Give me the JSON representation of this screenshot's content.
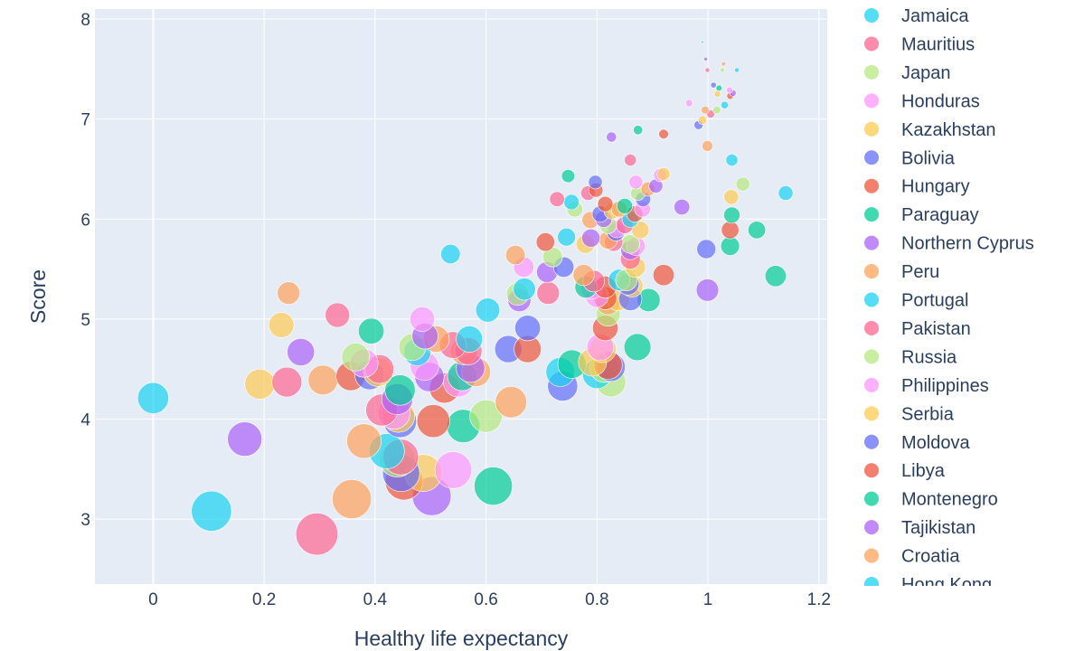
{
  "chart_data": {
    "type": "scatter",
    "xlabel": "Healthy life expectancy",
    "ylabel": "Score",
    "xlim": [
      -0.105,
      1.215
    ],
    "ylim": [
      2.35,
      8.1
    ],
    "x_ticks": [
      0,
      0.2,
      0.4,
      0.6,
      0.8,
      1,
      1.2
    ],
    "x_tick_labels": [
      "0",
      "0.2",
      "0.4",
      "0.6",
      "0.8",
      "1",
      "1.2"
    ],
    "y_ticks": [
      3,
      4,
      5,
      6,
      7,
      8
    ],
    "y_tick_labels": [
      "3",
      "4",
      "5",
      "6",
      "7",
      "8"
    ],
    "grid": true,
    "legend_position": "right",
    "palette": [
      "#00cc96",
      "#ab63fa",
      "#ffa15a",
      "#19d3f3",
      "#ff6692",
      "#b6e880",
      "#ff97ff",
      "#fecb52",
      "#636efa",
      "#ef553b"
    ],
    "legend": [
      {
        "name": "Jamaica",
        "color": "#19d3f3"
      },
      {
        "name": "Mauritius",
        "color": "#ff6692"
      },
      {
        "name": "Japan",
        "color": "#b6e880"
      },
      {
        "name": "Honduras",
        "color": "#ff97ff"
      },
      {
        "name": "Kazakhstan",
        "color": "#fecb52"
      },
      {
        "name": "Bolivia",
        "color": "#636efa"
      },
      {
        "name": "Hungary",
        "color": "#ef553b"
      },
      {
        "name": "Paraguay",
        "color": "#00cc96"
      },
      {
        "name": "Northern Cyprus",
        "color": "#ab63fa"
      },
      {
        "name": "Peru",
        "color": "#ffa15a"
      },
      {
        "name": "Portugal",
        "color": "#19d3f3"
      },
      {
        "name": "Pakistan",
        "color": "#ff6692"
      },
      {
        "name": "Russia",
        "color": "#b6e880"
      },
      {
        "name": "Philippines",
        "color": "#ff97ff"
      },
      {
        "name": "Serbia",
        "color": "#fecb52"
      },
      {
        "name": "Moldova",
        "color": "#636efa"
      },
      {
        "name": "Libya",
        "color": "#ef553b"
      },
      {
        "name": "Montenegro",
        "color": "#00cc96"
      },
      {
        "name": "Tajikistan",
        "color": "#ab63fa"
      },
      {
        "name": "Croatia",
        "color": "#ffa15a"
      },
      {
        "name": "Hong Kong",
        "color": "#19d3f3"
      }
    ],
    "points": [
      [
        0.99,
        7.77
      ],
      [
        0.996,
        7.6
      ],
      [
        1.028,
        7.55
      ],
      [
        1.052,
        7.49
      ],
      [
        0.999,
        7.49
      ],
      [
        1.026,
        7.49
      ],
      [
        1.039,
        7.29
      ],
      [
        1.017,
        7.25
      ],
      [
        1.01,
        7.34
      ],
      [
        1.04,
        7.23
      ],
      [
        1.02,
        7.31
      ],
      [
        1.045,
        7.26
      ],
      [
        0.995,
        7.09
      ],
      [
        1.03,
        7.14
      ],
      [
        1.005,
        7.05
      ],
      [
        1.016,
        7.09
      ],
      [
        0.966,
        7.16
      ],
      [
        0.99,
        6.99
      ],
      [
        0.983,
        6.94
      ],
      [
        0.92,
        6.85
      ],
      [
        0.874,
        6.89
      ],
      [
        0.826,
        6.82
      ],
      [
        0.999,
        6.73
      ],
      [
        1.043,
        6.59
      ],
      [
        0.86,
        6.59
      ],
      [
        1.063,
        6.35
      ],
      [
        0.914,
        6.44
      ],
      [
        0.92,
        6.45
      ],
      [
        0.797,
        6.37
      ],
      [
        0.798,
        6.29
      ],
      [
        0.748,
        6.43
      ],
      [
        0.906,
        6.33
      ],
      [
        0.892,
        6.3
      ],
      [
        1.14,
        6.26
      ],
      [
        0.784,
        6.26
      ],
      [
        0.874,
        6.26
      ],
      [
        0.87,
        6.37
      ],
      [
        1.042,
        6.22
      ],
      [
        0.883,
        6.2
      ],
      [
        0.815,
        6.15
      ],
      [
        0.85,
        6.13
      ],
      [
        0.953,
        6.12
      ],
      [
        0.84,
        6.1
      ],
      [
        0.754,
        6.17
      ],
      [
        0.728,
        6.2
      ],
      [
        0.76,
        6.1
      ],
      [
        0.882,
        6.1
      ],
      [
        0.827,
        6.08
      ],
      [
        0.806,
        6.05
      ],
      [
        0.868,
        6.05
      ],
      [
        1.043,
        6.04
      ],
      [
        0.812,
        6.0
      ],
      [
        0.788,
        5.99
      ],
      [
        0.86,
        6.0
      ],
      [
        0.85,
        5.94
      ],
      [
        0.82,
        5.94
      ],
      [
        0.836,
        5.9
      ],
      [
        0.878,
        5.89
      ],
      [
        0.834,
        5.87
      ],
      [
        1.04,
        5.89
      ],
      [
        1.088,
        5.89
      ],
      [
        0.789,
        5.81
      ],
      [
        0.82,
        5.79
      ],
      [
        0.745,
        5.82
      ],
      [
        0.83,
        5.77
      ],
      [
        0.86,
        5.75
      ],
      [
        0.87,
        5.73
      ],
      [
        0.779,
        5.75
      ],
      [
        0.997,
        5.7
      ],
      [
        0.707,
        5.77
      ],
      [
        1.04,
        5.73
      ],
      [
        0.86,
        5.69
      ],
      [
        0.653,
        5.64
      ],
      [
        0.536,
        5.65
      ],
      [
        0.86,
        5.6
      ],
      [
        0.72,
        5.62
      ],
      [
        0.668,
        5.52
      ],
      [
        0.869,
        5.52
      ],
      [
        0.74,
        5.52
      ],
      [
        0.92,
        5.44
      ],
      [
        1.122,
        5.43
      ],
      [
        0.71,
        5.47
      ],
      [
        0.776,
        5.44
      ],
      [
        0.84,
        5.39
      ],
      [
        0.794,
        5.38
      ],
      [
        0.853,
        5.39
      ],
      [
        0.79,
        5.31
      ],
      [
        0.863,
        5.33
      ],
      [
        0.856,
        5.35
      ],
      [
        0.815,
        5.32
      ],
      [
        0.78,
        5.32
      ],
      [
        0.999,
        5.29
      ],
      [
        0.244,
        5.26
      ],
      [
        0.669,
        5.3
      ],
      [
        0.712,
        5.26
      ],
      [
        0.657,
        5.25
      ],
      [
        0.8,
        5.23
      ],
      [
        0.838,
        5.2
      ],
      [
        0.86,
        5.2
      ],
      [
        0.815,
        5.21
      ],
      [
        0.893,
        5.19
      ],
      [
        0.66,
        5.19
      ],
      [
        0.82,
        5.16
      ],
      [
        0.603,
        5.09
      ],
      [
        0.332,
        5.04
      ],
      [
        0.82,
        5.05
      ],
      [
        0.485,
        5.0
      ],
      [
        0.231,
        4.94
      ],
      [
        0.675,
        4.91
      ],
      [
        0.815,
        4.91
      ],
      [
        0.393,
        4.88
      ],
      [
        0.49,
        4.83
      ],
      [
        0.51,
        4.8
      ],
      [
        0.57,
        4.8
      ],
      [
        0.54,
        4.74
      ],
      [
        0.467,
        4.72
      ],
      [
        0.806,
        4.72
      ],
      [
        0.81,
        4.7
      ],
      [
        0.64,
        4.7
      ],
      [
        0.675,
        4.7
      ],
      [
        0.873,
        4.72
      ],
      [
        0.266,
        4.67
      ],
      [
        0.56,
        4.68
      ],
      [
        0.476,
        4.67
      ],
      [
        0.568,
        4.68
      ],
      [
        0.365,
        4.62
      ],
      [
        0.38,
        4.56
      ],
      [
        0.792,
        4.57
      ],
      [
        0.825,
        4.52
      ],
      [
        0.82,
        4.54
      ],
      [
        0.755,
        4.55
      ],
      [
        0.572,
        4.51
      ],
      [
        0.582,
        4.47
      ],
      [
        0.734,
        4.47
      ],
      [
        0.408,
        4.5
      ],
      [
        0.813,
        4.51
      ],
      [
        0.489,
        4.53
      ],
      [
        0.405,
        4.47
      ],
      [
        0.39,
        4.44
      ],
      [
        0.356,
        4.43
      ],
      [
        0.557,
        4.43
      ],
      [
        0.498,
        4.42
      ],
      [
        0.306,
        4.39
      ],
      [
        0.8,
        4.45
      ],
      [
        0.241,
        4.37
      ],
      [
        0.825,
        4.37
      ],
      [
        0.55,
        4.37
      ],
      [
        0.192,
        4.35
      ],
      [
        0.738,
        4.33
      ],
      [
        0.525,
        4.31
      ],
      [
        0.445,
        4.29
      ],
      [
        0.44,
        4.2
      ],
      [
        0.645,
        4.17
      ],
      [
        0.0,
        4.21
      ],
      [
        0.412,
        4.09
      ],
      [
        0.6,
        4.03
      ],
      [
        0.434,
        4.06
      ],
      [
        0.442,
        4.03
      ],
      [
        0.445,
        3.98
      ],
      [
        0.505,
        3.98
      ],
      [
        0.559,
        3.93
      ],
      [
        0.165,
        3.8
      ],
      [
        0.38,
        3.78
      ],
      [
        0.421,
        3.68
      ],
      [
        0.446,
        3.62
      ],
      [
        0.44,
        3.6
      ],
      [
        0.541,
        3.49
      ],
      [
        0.487,
        3.46
      ],
      [
        0.447,
        3.46
      ],
      [
        0.452,
        3.38
      ],
      [
        0.613,
        3.33
      ],
      [
        0.502,
        3.23
      ],
      [
        0.358,
        3.2
      ],
      [
        0.105,
        3.08
      ],
      [
        0.295,
        2.85
      ]
    ]
  }
}
